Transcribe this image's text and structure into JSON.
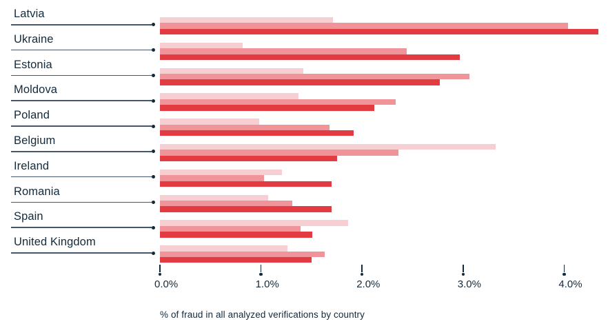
{
  "chart_data": {
    "type": "bar",
    "orientation": "horizontal",
    "title": "",
    "xlabel": "% of fraud in all analyzed verifications by country",
    "ylabel": "",
    "categories": [
      "Latvia",
      "Ukraine",
      "Estonia",
      "Moldova",
      "Poland",
      "Belgium",
      "Ireland",
      "Romania",
      "Spain",
      "United Kingdom"
    ],
    "series": [
      {
        "name": "series-light",
        "color": "#f7ced2",
        "values": [
          1.71,
          0.82,
          1.42,
          1.37,
          0.98,
          3.32,
          1.21,
          1.07,
          1.86,
          1.26
        ]
      },
      {
        "name": "series-medium",
        "color": "#f0949a",
        "values": [
          4.04,
          2.44,
          3.06,
          2.33,
          1.68,
          2.36,
          1.03,
          1.31,
          1.39,
          1.63
        ]
      },
      {
        "name": "series-dark",
        "color": "#e23c42",
        "values": [
          4.34,
          2.97,
          2.77,
          2.12,
          1.92,
          1.75,
          1.7,
          1.7,
          1.51,
          1.5
        ]
      }
    ],
    "x_ticks": [
      {
        "value": 0,
        "label": "0.0%"
      },
      {
        "value": 1,
        "label": "1.0%"
      },
      {
        "value": 2,
        "label": "2.0%"
      },
      {
        "value": 3,
        "label": "3.0%"
      },
      {
        "value": 4,
        "label": "4.0%"
      }
    ],
    "xlim": [
      0,
      4.43
    ],
    "grid": false,
    "legend_position": "none"
  },
  "style": {
    "label_color": "#14293a",
    "leader_line_color": "#43566b",
    "leader_dot_color": "#14293a",
    "axis_tick_color": "#14293a",
    "axis_label_color": "#14293a",
    "caption_color": "#14293a"
  }
}
